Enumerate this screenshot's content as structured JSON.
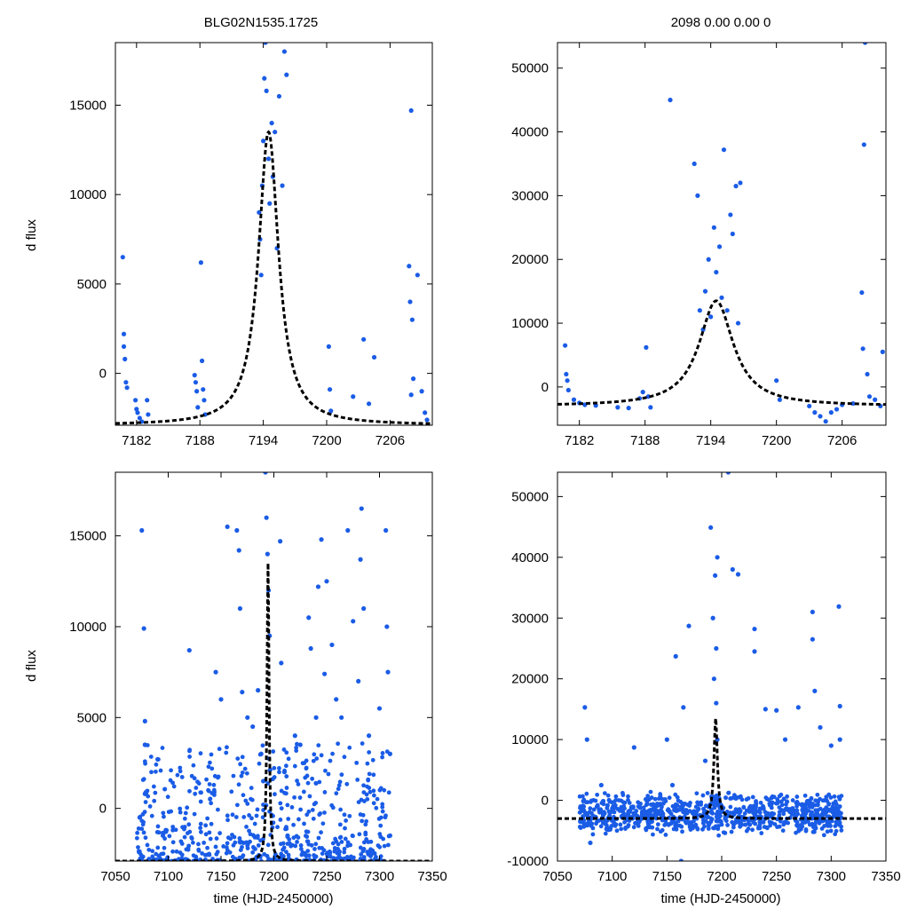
{
  "titles": {
    "left": "BLG02N1535.1725",
    "right": "2098  0.00  0.00  0"
  },
  "ylabel": "d flux",
  "xlabel": "time (HJD-2450000)",
  "colors": {
    "points": "#1a5ce6",
    "model": "#000000",
    "axes": "#000000"
  },
  "chart_data": [
    {
      "id": "tl",
      "type": "scatter",
      "xlim": [
        7180,
        7210
      ],
      "ylim": [
        -2900,
        18500
      ],
      "xticks": [
        7182,
        7188,
        7194,
        7200,
        7206
      ],
      "yticks": [
        0,
        5000,
        10000,
        15000
      ],
      "model": {
        "t0": 7194.5,
        "peak": 13500,
        "base": -2900,
        "width": 1.15
      },
      "points": [
        [
          7180.7,
          6500
        ],
        [
          7180.8,
          2200
        ],
        [
          7180.8,
          1500
        ],
        [
          7180.9,
          800
        ],
        [
          7181.0,
          -500
        ],
        [
          7181.1,
          -800
        ],
        [
          7181.9,
          -1500
        ],
        [
          7182.0,
          -2000
        ],
        [
          7182.1,
          -2200
        ],
        [
          7182.3,
          -2500
        ],
        [
          7182.5,
          -2700
        ],
        [
          7183.0,
          -1500
        ],
        [
          7183.1,
          -2300
        ],
        [
          7187.5,
          -100
        ],
        [
          7187.6,
          -500
        ],
        [
          7187.7,
          -1000
        ],
        [
          7187.8,
          -1900
        ],
        [
          7188.1,
          6200
        ],
        [
          7188.2,
          700
        ],
        [
          7188.3,
          -900
        ],
        [
          7188.4,
          -1500
        ],
        [
          7188.5,
          -2300
        ],
        [
          7193.6,
          9000
        ],
        [
          7193.7,
          7500
        ],
        [
          7193.8,
          5500
        ],
        [
          7193.9,
          10500
        ],
        [
          7194.0,
          13000
        ],
        [
          7194.1,
          16500
        ],
        [
          7194.2,
          18500
        ],
        [
          7194.3,
          15800
        ],
        [
          7194.5,
          12000
        ],
        [
          7194.6,
          9500
        ],
        [
          7194.8,
          14000
        ],
        [
          7194.9,
          11000
        ],
        [
          7195.1,
          13500
        ],
        [
          7195.3,
          7000
        ],
        [
          7195.5,
          15500
        ],
        [
          7195.8,
          10500
        ],
        [
          7196.0,
          18000
        ],
        [
          7196.2,
          16700
        ],
        [
          7200.2,
          1500
        ],
        [
          7200.3,
          -900
        ],
        [
          7200.4,
          -2100
        ],
        [
          7202.5,
          -1300
        ],
        [
          7203.5,
          1900
        ],
        [
          7204.0,
          -1700
        ],
        [
          7204.5,
          900
        ],
        [
          7208.0,
          14700
        ],
        [
          7207.8,
          6000
        ],
        [
          7207.9,
          4000
        ],
        [
          7208.1,
          3000
        ],
        [
          7208.2,
          -300
        ],
        [
          7208.0,
          -1200
        ],
        [
          7208.6,
          5500
        ],
        [
          7209.0,
          -1000
        ],
        [
          7209.3,
          -2200
        ],
        [
          7209.5,
          -2600
        ]
      ]
    },
    {
      "id": "tr",
      "type": "scatter",
      "xlim": [
        7180,
        7210
      ],
      "ylim": [
        -6000,
        54000
      ],
      "xticks": [
        7182,
        7188,
        7194,
        7200,
        7206
      ],
      "yticks": [
        0,
        10000,
        20000,
        30000,
        40000,
        50000
      ],
      "model": {
        "t0": 7194.5,
        "peak": 13500,
        "base": -3000,
        "width": 1.9
      },
      "points": [
        [
          7180.7,
          6500
        ],
        [
          7180.8,
          2000
        ],
        [
          7180.9,
          1000
        ],
        [
          7181.0,
          -500
        ],
        [
          7181.5,
          -2000
        ],
        [
          7182.0,
          -2500
        ],
        [
          7182.5,
          -2800
        ],
        [
          7183.5,
          -2900
        ],
        [
          7185.5,
          -3200
        ],
        [
          7186.5,
          -3300
        ],
        [
          7187.5,
          -1800
        ],
        [
          7187.8,
          -800
        ],
        [
          7188.1,
          6200
        ],
        [
          7188.3,
          -1500
        ],
        [
          7188.5,
          -3200
        ],
        [
          7190.3,
          45000
        ],
        [
          7192.5,
          35000
        ],
        [
          7192.8,
          30000
        ],
        [
          7193.0,
          12000
        ],
        [
          7193.3,
          9000
        ],
        [
          7193.5,
          15000
        ],
        [
          7193.8,
          20000
        ],
        [
          7194.0,
          11000
        ],
        [
          7194.3,
          25000
        ],
        [
          7194.5,
          18000
        ],
        [
          7194.8,
          22000
        ],
        [
          7195.0,
          14000
        ],
        [
          7195.2,
          37200
        ],
        [
          7195.5,
          12000
        ],
        [
          7195.8,
          27000
        ],
        [
          7196.0,
          24000
        ],
        [
          7196.3,
          31500
        ],
        [
          7196.5,
          10000
        ],
        [
          7196.7,
          32000
        ],
        [
          7200.0,
          1000
        ],
        [
          7200.3,
          -2000
        ],
        [
          7203.0,
          -3000
        ],
        [
          7203.5,
          -4000
        ],
        [
          7204.0,
          -4600
        ],
        [
          7204.5,
          -5400
        ],
        [
          7205.0,
          -4000
        ],
        [
          7205.5,
          -3500
        ],
        [
          7206.0,
          -2800
        ],
        [
          7207.0,
          -2600
        ],
        [
          7207.8,
          14800
        ],
        [
          7207.9,
          6000
        ],
        [
          7208.0,
          38000
        ],
        [
          7208.1,
          54000
        ],
        [
          7208.3,
          2000
        ],
        [
          7208.5,
          -1500
        ],
        [
          7209.0,
          -2000
        ],
        [
          7209.5,
          -3000
        ],
        [
          7209.7,
          5500
        ]
      ]
    },
    {
      "id": "bl",
      "type": "scatter",
      "xlim": [
        7050,
        7350
      ],
      "ylim": [
        -2900,
        18500
      ],
      "xticks": [
        7050,
        7100,
        7150,
        7200,
        7250,
        7300,
        7350
      ],
      "yticks": [
        0,
        5000,
        10000,
        15000
      ],
      "model": {
        "t0": 7194.5,
        "peak": 13500,
        "base": -2900,
        "width": 1.15
      },
      "points": [
        [
          7075,
          15300
        ],
        [
          7077,
          9900
        ],
        [
          7078,
          4800
        ],
        [
          7078,
          3500
        ],
        [
          7078,
          800
        ],
        [
          7073,
          -500
        ],
        [
          7090,
          2700
        ],
        [
          7095,
          -1500
        ],
        [
          7120,
          8700
        ],
        [
          7145,
          7500
        ],
        [
          7150,
          6000
        ],
        [
          7156,
          15500
        ],
        [
          7165,
          15300
        ],
        [
          7167,
          14200
        ],
        [
          7168,
          11000
        ],
        [
          7170,
          6400
        ],
        [
          7175,
          5000
        ],
        [
          7180,
          4500
        ],
        [
          7185,
          6500
        ],
        [
          7188,
          3000
        ],
        [
          7190,
          1500
        ],
        [
          7192,
          18500
        ],
        [
          7193,
          16000
        ],
        [
          7194,
          14000
        ],
        [
          7195,
          12000
        ],
        [
          7196,
          9500
        ],
        [
          7206,
          14700
        ],
        [
          7207,
          8000
        ],
        [
          7210,
          2000
        ],
        [
          7213,
          -1500
        ],
        [
          7220,
          4000
        ],
        [
          7225,
          3500
        ],
        [
          7233,
          10500
        ],
        [
          7235,
          8800
        ],
        [
          7240,
          5000
        ],
        [
          7242,
          12200
        ],
        [
          7245,
          14800
        ],
        [
          7248,
          7400
        ],
        [
          7250,
          12500
        ],
        [
          7255,
          9000
        ],
        [
          7259,
          6000
        ],
        [
          7264,
          5000
        ],
        [
          7270,
          15300
        ],
        [
          7275,
          10300
        ],
        [
          7280,
          7000
        ],
        [
          7282,
          13700
        ],
        [
          7283,
          16500
        ],
        [
          7285,
          11000
        ],
        [
          7290,
          4000
        ],
        [
          7300,
          5500
        ],
        [
          7306,
          15300
        ],
        [
          7307,
          10000
        ],
        [
          7308,
          7500
        ],
        [
          7310,
          3000
        ],
        [
          7310,
          -1500
        ]
      ]
    },
    {
      "id": "br",
      "type": "scatter",
      "xlim": [
        7050,
        7350
      ],
      "ylim": [
        -10000,
        54000
      ],
      "xticks": [
        7050,
        7100,
        7150,
        7200,
        7250,
        7300,
        7350
      ],
      "yticks": [
        -10000,
        0,
        10000,
        20000,
        30000,
        40000,
        50000
      ],
      "model": {
        "t0": 7194.5,
        "peak": 13500,
        "base": -3000,
        "width": 1.9
      },
      "points": [
        [
          7075,
          15300
        ],
        [
          7077,
          10000
        ],
        [
          7080,
          -7000
        ],
        [
          7090,
          2500
        ],
        [
          7120,
          8700
        ],
        [
          7150,
          10000
        ],
        [
          7155,
          2500
        ],
        [
          7158,
          23700
        ],
        [
          7163,
          -10000
        ],
        [
          7165,
          15300
        ],
        [
          7170,
          28700
        ],
        [
          7185,
          6500
        ],
        [
          7190,
          44900
        ],
        [
          7192,
          30000
        ],
        [
          7193,
          20000
        ],
        [
          7194,
          37000
        ],
        [
          7195,
          25000
        ],
        [
          7195,
          16000
        ],
        [
          7196,
          10000
        ],
        [
          7196,
          40000
        ],
        [
          7206,
          54000
        ],
        [
          7210,
          38000
        ],
        [
          7215,
          37200
        ],
        [
          7230,
          28200
        ],
        [
          7230,
          24500
        ],
        [
          7240,
          15000
        ],
        [
          7250,
          14800
        ],
        [
          7258,
          10000
        ],
        [
          7270,
          15300
        ],
        [
          7283,
          31000
        ],
        [
          7283,
          26500
        ],
        [
          7285,
          18000
        ],
        [
          7290,
          12000
        ],
        [
          7300,
          9000
        ],
        [
          7307,
          31900
        ],
        [
          7308,
          15500
        ],
        [
          7308,
          10000
        ]
      ],
      "band": {
        "xmin": 7070,
        "xmax": 7310,
        "ymin": -6000,
        "ymax": 1500
      }
    }
  ]
}
